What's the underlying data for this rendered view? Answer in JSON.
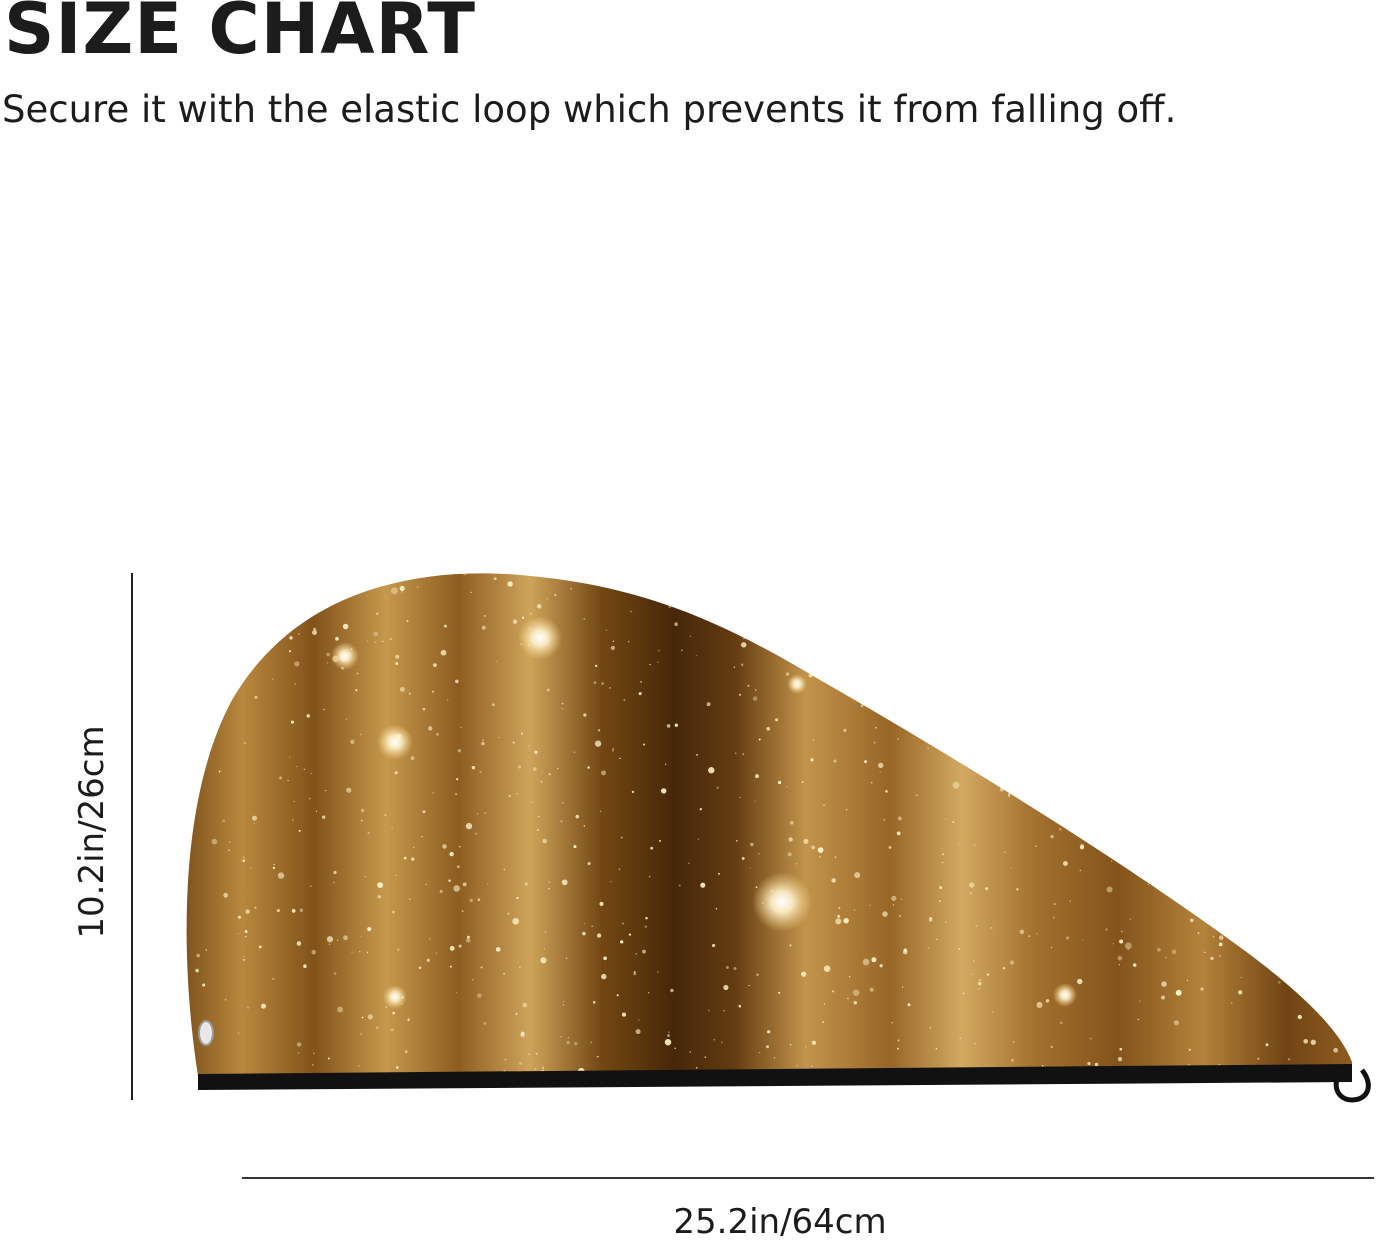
{
  "header": {
    "title": "SIZE CHART",
    "subtitle": "Secure it with the elastic loop which prevents it from falling off."
  },
  "dimensions": {
    "height_label": "10.2in/26cm",
    "width_label": "25.2in/64cm"
  },
  "product": {
    "image_icon": "hair-towel-wrap-icon",
    "pattern": "gold glitter bokeh",
    "colors": {
      "base": "#8a5a1e",
      "light": "#e2b463",
      "dark": "#4a2a0c",
      "trim": "#111111"
    }
  }
}
